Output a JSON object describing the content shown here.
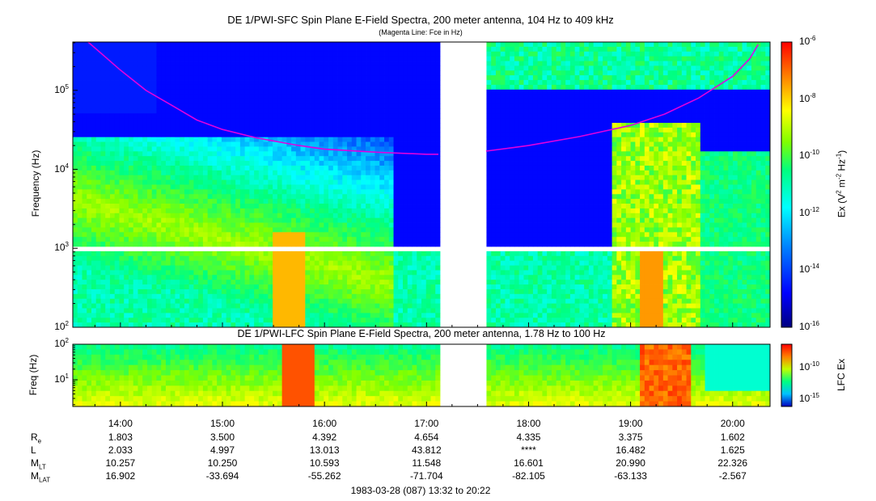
{
  "chart_data": [
    {
      "type": "heatmap",
      "title": "DE 1/PWI-SFC  Spin Plane E-Field Spectra, 200 meter antenna, 104 Hz to 409 kHz",
      "subtitle": "(Magenta Line: Fce in Hz)",
      "ylabel": "Frequency (Hz)",
      "yscale": "log",
      "ylim": [
        100,
        409000
      ],
      "yticks": [
        "10^2",
        "10^3",
        "10^4",
        "10^5"
      ],
      "colorbar": {
        "label": "Ex (V^2 m^-2 Hz^-1)",
        "scale": "log",
        "range": [
          1e-16,
          1e-06
        ],
        "ticks": [
          "10^-6",
          "10^-8",
          "10^-10",
          "10^-12",
          "10^-14",
          "10^-16"
        ],
        "colors": [
          "#000080",
          "#0000ff",
          "#0080ff",
          "#00ffff",
          "#00ff80",
          "#80ff00",
          "#ffff00",
          "#ff8000",
          "#ff0000"
        ]
      },
      "data_gap": [
        "17:08",
        "17:34"
      ],
      "series": [
        {
          "name": "Fce",
          "color": "#e000e0",
          "x": [
            "13:41",
            "14:00",
            "14:15",
            "14:30",
            "14:45",
            "15:00",
            "15:20",
            "15:45",
            "16:00",
            "16:30",
            "17:00",
            "17:07"
          ],
          "values": [
            420000,
            180000,
            100000,
            65000,
            42000,
            32000,
            25000,
            20000,
            18000,
            16500,
            15500,
            15500
          ]
        },
        {
          "name": "Fce",
          "color": "#e000e0",
          "x": [
            "17:35",
            "18:00",
            "18:30",
            "19:00",
            "19:20",
            "19:40",
            "20:00",
            "20:10",
            "20:15"
          ],
          "values": [
            17000,
            20000,
            26000,
            36000,
            50000,
            80000,
            150000,
            250000,
            380000
          ]
        }
      ]
    },
    {
      "type": "heatmap",
      "title": "DE 1/PWI-LFC  Spin Plane E-Field Spectra, 200 meter antenna, 1.78 Hz to 100 Hz",
      "ylabel": "Freq (Hz)",
      "yscale": "log",
      "ylim": [
        1.78,
        100
      ],
      "yticks": [
        "10^1",
        "10^2"
      ],
      "colorbar": {
        "label": "LFC Ex",
        "scale": "log",
        "ticks": [
          "10^-10",
          "10^-15"
        ]
      },
      "data_gap": [
        "17:08",
        "17:34"
      ]
    }
  ],
  "xaxis": {
    "ticks": [
      "14:00",
      "15:00",
      "16:00",
      "17:00",
      "18:00",
      "19:00",
      "20:00"
    ],
    "range": [
      "13:32",
      "20:22"
    ]
  },
  "ephemeris": {
    "rows": [
      {
        "label": "R",
        "sub": "e",
        "values": [
          "1.803",
          "3.500",
          "4.392",
          "4.654",
          "4.335",
          "3.375",
          "1.602"
        ]
      },
      {
        "label": "L",
        "sub": "",
        "values": [
          "2.033",
          "4.997",
          "13.013",
          "43.812",
          "****",
          "16.482",
          "1.625"
        ]
      },
      {
        "label": "M",
        "sub": "LT",
        "values": [
          "10.257",
          "10.250",
          "10.593",
          "11.548",
          "16.601",
          "20.990",
          "22.326"
        ]
      },
      {
        "label": "M",
        "sub": "LAT",
        "values": [
          "16.902",
          "-33.694",
          "-55.262",
          "-71.704",
          "-82.105",
          "-63.133",
          "-2.567"
        ]
      }
    ]
  },
  "footer": "1983-03-28 (087) 13:32 to 20:22"
}
